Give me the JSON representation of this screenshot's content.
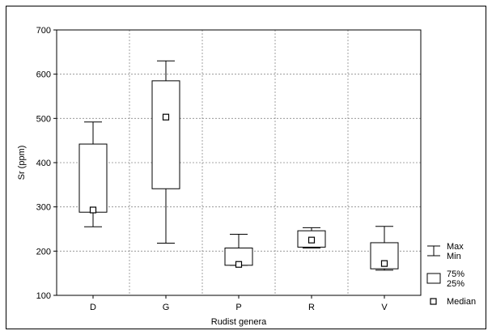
{
  "chart_data": {
    "type": "boxplot",
    "xlabel": "Rudist genera",
    "ylabel": "Sr (ppm)",
    "ylim": [
      100,
      700
    ],
    "yticks": [
      100,
      200,
      300,
      400,
      500,
      600,
      700
    ],
    "grid": true,
    "legend_position": "right",
    "categories": [
      "D",
      "G",
      "P",
      "R",
      "V"
    ],
    "boxes": [
      {
        "category": "D",
        "min": 255,
        "q1": 288,
        "median": 293,
        "q3": 442,
        "max": 492
      },
      {
        "category": "G",
        "min": 218,
        "q1": 341,
        "median": 503,
        "q3": 585,
        "max": 630
      },
      {
        "category": "P",
        "min": 168,
        "q1": 168,
        "median": 170,
        "q3": 207,
        "max": 238
      },
      {
        "category": "R",
        "min": 207,
        "q1": 209,
        "median": 225,
        "q3": 246,
        "max": 253
      },
      {
        "category": "V",
        "min": 157,
        "q1": 160,
        "median": 172,
        "q3": 219,
        "max": 256
      }
    ],
    "legend": [
      {
        "symbol": "whisker",
        "labels": [
          "Max",
          "Min"
        ]
      },
      {
        "symbol": "box",
        "labels": [
          "75%",
          "25%"
        ]
      },
      {
        "symbol": "median",
        "labels": [
          "Median"
        ]
      }
    ]
  },
  "colors": {
    "stroke": "#000000",
    "grid": "#8a8a8a",
    "background": "#ffffff"
  }
}
